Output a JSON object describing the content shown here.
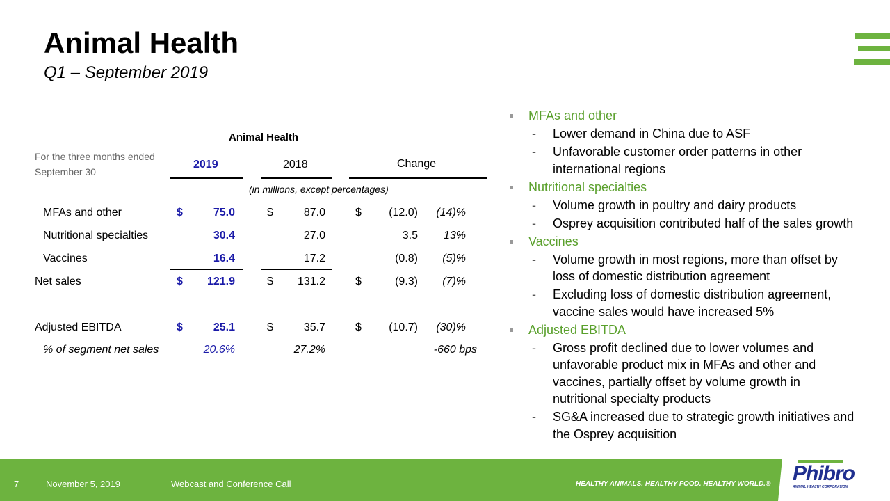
{
  "header": {
    "title": "Animal Health",
    "subtitle": "Q1 – September 2019"
  },
  "table": {
    "title": "Animal Health",
    "period_label": "For the three months ended",
    "period_label2": "September 30",
    "col_2019": "2019",
    "col_2018": "2018",
    "col_change": "Change",
    "units": "(in millions, except percentages)",
    "rows": [
      {
        "label": "MFAs and other",
        "d1": "$",
        "v2019": "75.0",
        "d2": "$",
        "v2018": "87.0",
        "d3": "$",
        "chg": "(12.0)",
        "pct": "(14)%"
      },
      {
        "label": "Nutritional specialties",
        "d1": "",
        "v2019": "30.4",
        "d2": "",
        "v2018": "27.0",
        "d3": "",
        "chg": "3.5",
        "pct": "13%"
      },
      {
        "label": "Vaccines",
        "d1": "",
        "v2019": "16.4",
        "d2": "",
        "v2018": "17.2",
        "d3": "",
        "chg": "(0.8)",
        "pct": "(5)%"
      },
      {
        "label": "Net sales",
        "d1": "$",
        "v2019": "121.9",
        "d2": "$",
        "v2018": "131.2",
        "d3": "$",
        "chg": "(9.3)",
        "pct": "(7)%"
      },
      {
        "label": "Adjusted EBITDA",
        "d1": "$",
        "v2019": "25.1",
        "d2": "$",
        "v2018": "35.7",
        "d3": "$",
        "chg": "(10.7)",
        "pct": "(30)%"
      },
      {
        "label": "% of segment net sales",
        "d1": "",
        "v2019": "20.6%",
        "d2": "",
        "v2018": "27.2%",
        "d3": "",
        "chg": "",
        "pct": "-660 bps"
      }
    ]
  },
  "bullets": [
    {
      "h": "MFAs and other",
      "subs": [
        [
          "Lower demand in China due to ASF"
        ],
        [
          "Unfavorable customer order patterns in other",
          "international regions"
        ]
      ]
    },
    {
      "h": "Nutritional specialties",
      "subs": [
        [
          "Volume growth in poultry and dairy products"
        ],
        [
          "Osprey acquisition contributed half of the sales growth"
        ]
      ]
    },
    {
      "h": "Vaccines",
      "subs": [
        [
          "Volume growth in most regions, more than offset by",
          "loss of domestic distribution agreement"
        ],
        [
          "Excluding loss of domestic distribution agreement,",
          "vaccine sales would have increased 5%"
        ]
      ]
    },
    {
      "h": "Adjusted EBITDA",
      "subs": [
        [
          "Gross profit declined due to lower volumes and",
          "unfavorable product mix in MFAs and other and",
          "vaccines, partially offset by volume growth in",
          "nutritional specialty products"
        ],
        [
          "SG&A increased due to strategic growth initiatives and",
          "the Osprey acquisition"
        ]
      ]
    }
  ],
  "footer": {
    "page": "7",
    "date": "November 5, 2019",
    "event": "Webcast and Conference Call",
    "tagline": "HEALTHY ANIMALS. HEALTHY FOOD. HEALTHY WORLD.®",
    "logo": "Phibro",
    "logo_sub": "ANIMAL HEALTH CORPORATION"
  },
  "colors": {
    "green": "#6db33f",
    "blue": "#1a1aa8",
    "logo_blue": "#1f2f8f"
  }
}
